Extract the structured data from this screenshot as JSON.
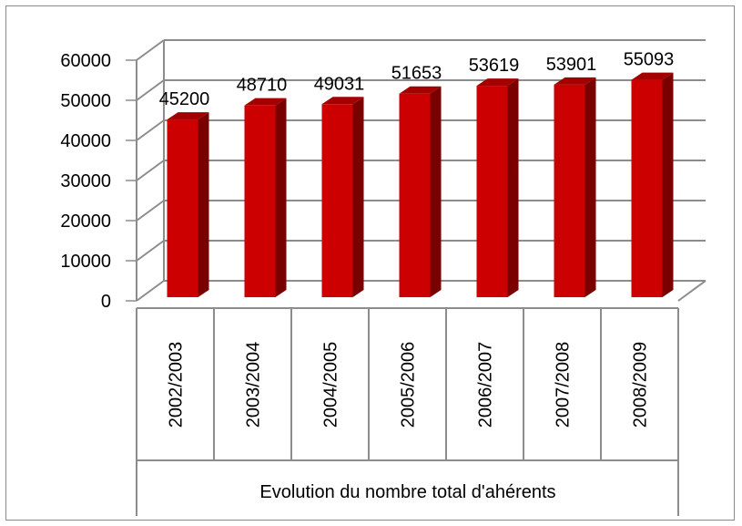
{
  "chart_data": {
    "type": "bar",
    "style": "3d-column",
    "categories": [
      "2002/2003",
      "2003/2004",
      "2004/2005",
      "2005/2006",
      "2006/2007",
      "2007/2008",
      "2008/2009"
    ],
    "values": [
      45200,
      48710,
      49031,
      51653,
      53619,
      53901,
      55093
    ],
    "data_labels": [
      "45200",
      "48710",
      "49031",
      "51653",
      "53619",
      "53901",
      "55093"
    ],
    "y_ticks": [
      "0",
      "10000",
      "20000",
      "30000",
      "40000",
      "50000",
      "60000"
    ],
    "ylim": [
      0,
      60000
    ],
    "xlabel": "Evolution du nombre total d'ahérents",
    "grid": true,
    "colors": {
      "bar_front": "#cc0000",
      "bar_side": "#7a0000",
      "bar_top": "#a30000",
      "gridline": "#8c8c8c",
      "axis": "#8c8c8c"
    }
  }
}
